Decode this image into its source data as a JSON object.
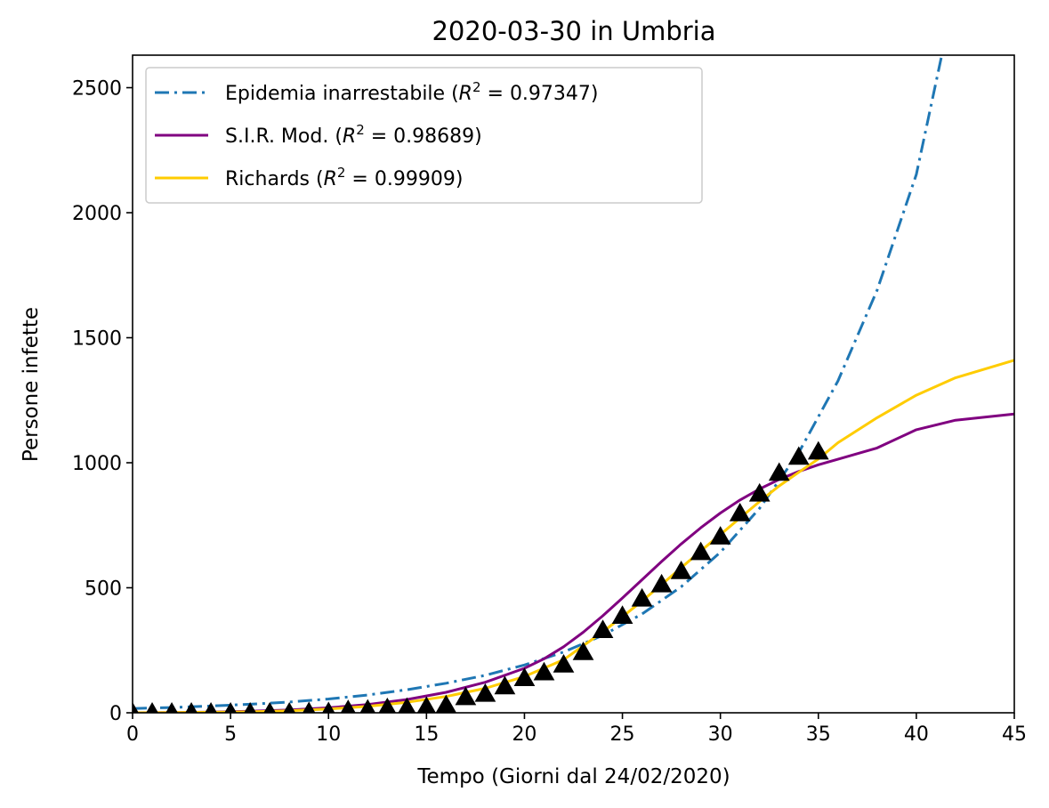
{
  "chart_data": {
    "type": "line",
    "title": "2020-03-30 in Umbria",
    "xlabel": "Tempo (Giorni dal 24/02/2020)",
    "ylabel": "Persone infette",
    "xlim": [
      0,
      45
    ],
    "ylim": [
      0,
      2630
    ],
    "xticks": [
      0,
      5,
      10,
      15,
      20,
      25,
      30,
      35,
      40,
      45
    ],
    "yticks": [
      0,
      500,
      1000,
      1500,
      2000,
      2500
    ],
    "grid": false,
    "legend_position": "top-left",
    "series": [
      {
        "name": "Epidemia inarrestabile",
        "r2": "0.97347",
        "color": "#1f77b4",
        "style": "dashdot",
        "x": [
          0,
          2,
          4,
          6,
          8,
          10,
          12,
          14,
          16,
          18,
          20,
          22,
          24,
          26,
          28,
          30,
          32,
          34,
          36,
          38,
          40,
          41.3
        ],
        "y": [
          17,
          21,
          27,
          34,
          43,
          55,
          71,
          92,
          118,
          150,
          191,
          243,
          310,
          395,
          504,
          642,
          818,
          1041,
          1327,
          1690,
          2153,
          2630
        ]
      },
      {
        "name": "S.I.R. Mod.",
        "r2": "0.98689",
        "color": "#800080",
        "style": "solid",
        "x": [
          0,
          2,
          4,
          6,
          8,
          10,
          12,
          14,
          16,
          18,
          20,
          21,
          22,
          23,
          24,
          25,
          26,
          27,
          28,
          29,
          30,
          31,
          32,
          33,
          34,
          35,
          36,
          38,
          40,
          42,
          45
        ],
        "y": [
          0,
          1,
          3,
          6,
          11,
          20,
          33,
          53,
          82,
          122,
          178,
          216,
          264,
          322,
          388,
          459,
          532,
          605,
          675,
          740,
          799,
          851,
          895,
          933,
          965,
          992,
          1014,
          1059,
          1132,
          1170,
          1195
        ]
      },
      {
        "name": "Richards",
        "r2": "0.99909",
        "color": "#ffcc00",
        "style": "solid",
        "x": [
          0,
          2,
          4,
          6,
          8,
          10,
          12,
          14,
          16,
          18,
          20,
          22,
          24,
          25,
          26,
          27,
          28,
          29,
          30,
          31,
          32,
          33,
          34,
          35,
          36,
          38,
          40,
          42,
          45
        ],
        "y": [
          0,
          1,
          2,
          4,
          8,
          15,
          26,
          42,
          65,
          98,
          145,
          212,
          324,
          384,
          447,
          513,
          580,
          647,
          713,
          779,
          845,
          907,
          962,
          1015,
          1080,
          1180,
          1270,
          1340,
          1410
        ]
      }
    ],
    "observed": {
      "color": "#000000",
      "marker": "triangle",
      "x": [
        0,
        1,
        2,
        3,
        4,
        5,
        6,
        7,
        8,
        9,
        10,
        11,
        12,
        13,
        14,
        15,
        16,
        17,
        18,
        19,
        20,
        21,
        22,
        23,
        24,
        25,
        26,
        27,
        28,
        29,
        30,
        31,
        32,
        33,
        34,
        35
      ],
      "y": [
        0,
        0,
        0,
        0,
        0,
        0,
        0,
        0,
        0,
        2,
        2,
        10,
        12,
        18,
        19,
        23,
        30,
        62,
        75,
        105,
        138,
        161,
        192,
        242,
        330,
        387,
        456,
        513,
        566,
        642,
        704,
        797,
        876,
        959,
        1023,
        1044
      ]
    }
  }
}
